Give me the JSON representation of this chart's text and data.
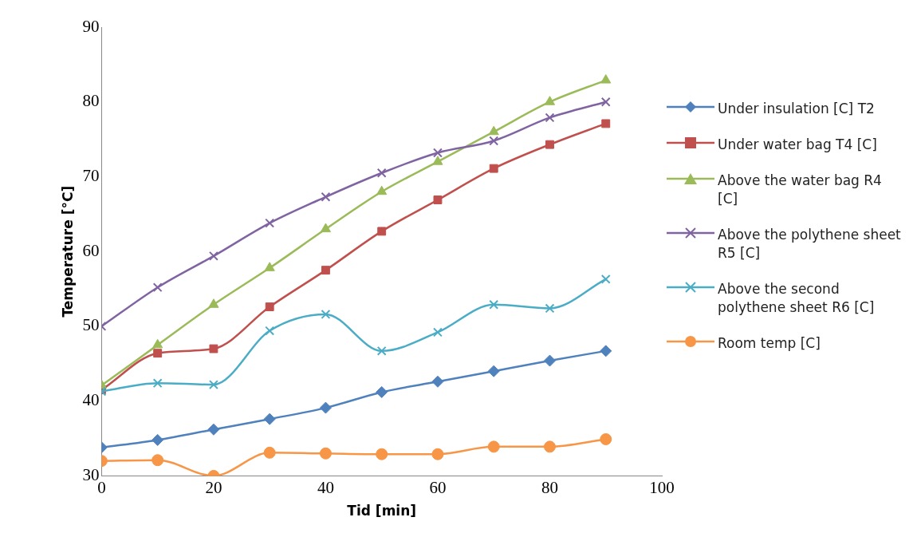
{
  "chart_data": {
    "type": "line",
    "xlabel": "Tid [min]",
    "ylabel": "Temperature [°C]",
    "x": [
      0,
      10,
      20,
      30,
      40,
      50,
      60,
      70,
      80,
      90
    ],
    "xlim": [
      0,
      100
    ],
    "xticks": [
      0,
      20,
      40,
      60,
      80,
      100
    ],
    "ylim": [
      30,
      90
    ],
    "yticks": [
      30,
      40,
      50,
      60,
      70,
      80,
      90
    ],
    "grid": false,
    "legend": "right",
    "series": [
      {
        "name": "Under insulation [C] T2",
        "color": "#4f81bd",
        "marker": "diamond",
        "values": [
          33.8,
          34.8,
          36.2,
          37.6,
          39.1,
          41.2,
          42.6,
          44.0,
          45.4,
          46.7
        ]
      },
      {
        "name": "Under water bag T4 [C]",
        "color": "#c0504d",
        "marker": "square",
        "values": [
          41.5,
          46.4,
          47.0,
          52.6,
          57.5,
          62.7,
          66.9,
          71.1,
          74.3,
          77.1
        ]
      },
      {
        "name": "Above the water bag R4 [C]",
        "color": "#9bbb59",
        "marker": "triangle",
        "values": [
          42.1,
          47.5,
          52.9,
          57.8,
          63.0,
          68.0,
          72.0,
          76.0,
          80.0,
          82.9
        ]
      },
      {
        "name": "Above the polythene sheet R5 [C]",
        "color": "#8064a2",
        "marker": "cross",
        "values": [
          50.0,
          55.2,
          59.4,
          63.8,
          67.3,
          70.5,
          73.2,
          74.8,
          77.9,
          80.0
        ]
      },
      {
        "name": "Above the second polythene sheet R6 [C]",
        "color": "#4bacc6",
        "marker": "cross",
        "values": [
          41.3,
          42.4,
          42.2,
          49.4,
          51.6,
          46.7,
          49.2,
          52.9,
          52.4,
          56.3
        ]
      },
      {
        "name": "Room temp [C]",
        "color": "#f79646",
        "marker": "circle",
        "values": [
          32.0,
          32.1,
          30.0,
          33.1,
          33.0,
          32.9,
          32.9,
          33.9,
          33.9,
          34.9
        ]
      }
    ]
  }
}
